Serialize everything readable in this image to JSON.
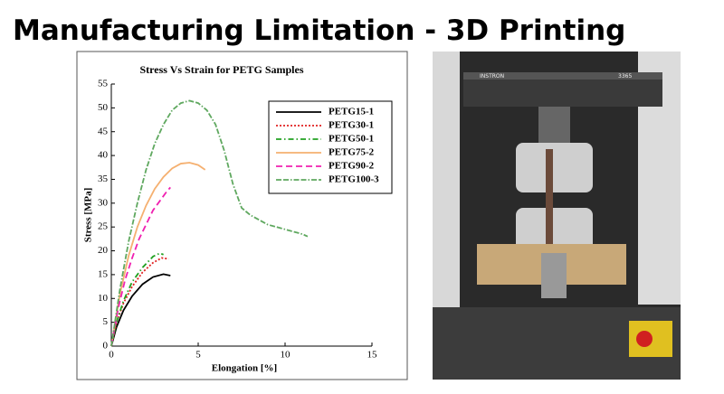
{
  "title": "Manufacturing Limitation - 3D Printing",
  "chart_data": {
    "type": "line",
    "title": "Stress Vs Strain for PETG Samples",
    "x_label": "Elongation [%]",
    "y_label": "Stress [MPa]",
    "xlim": [
      0,
      15
    ],
    "xticks": [
      0,
      5,
      10,
      15
    ],
    "ylim": [
      0,
      55
    ],
    "yticks": [
      0,
      5,
      10,
      15,
      20,
      25,
      30,
      35,
      40,
      45,
      50,
      55
    ],
    "legend": "top-right",
    "series": [
      {
        "name": "PETG15-1",
        "color": "#000000",
        "dash": "solid",
        "x": [
          0,
          0.3,
          0.7,
          1.2,
          1.8,
          2.4,
          3.0,
          3.4
        ],
        "values": [
          0,
          4,
          7.5,
          10.5,
          13,
          14.5,
          15.1,
          14.8
        ]
      },
      {
        "name": "PETG30-1",
        "color": "#e02020",
        "dash": "dotted",
        "x": [
          0,
          0.3,
          0.7,
          1.2,
          1.8,
          2.4,
          2.9,
          3.3
        ],
        "values": [
          0,
          5,
          9,
          12.5,
          15.5,
          17.5,
          18.5,
          18.3
        ]
      },
      {
        "name": "PETG50-1",
        "color": "#20a020",
        "dash": "dashdot",
        "x": [
          0,
          0.3,
          0.7,
          1.2,
          1.8,
          2.4,
          2.8,
          3.0
        ],
        "values": [
          0,
          5,
          9.5,
          13.5,
          16.5,
          18.8,
          19.5,
          19.2
        ]
      },
      {
        "name": "PETG75-2",
        "color": "#f5b070",
        "dash": "solid",
        "x": [
          0,
          0.5,
          1,
          1.5,
          2,
          2.5,
          3,
          3.5,
          4,
          4.5,
          5,
          5.4
        ],
        "values": [
          0,
          11,
          19,
          25,
          29.5,
          33,
          35.5,
          37.3,
          38.3,
          38.5,
          38,
          37
        ]
      },
      {
        "name": "PETG90-2",
        "color": "#f020b0",
        "dash": "dashed",
        "x": [
          0,
          0.4,
          0.8,
          1.2,
          1.6,
          2,
          2.4,
          2.8,
          3.2,
          3.4
        ],
        "values": [
          0,
          8,
          14,
          18.5,
          22.5,
          25.5,
          28.5,
          30.5,
          32.5,
          33.3
        ]
      },
      {
        "name": "PETG100-3",
        "color": "#5fa85f",
        "dash": "dashdashdot",
        "x": [
          0,
          0.5,
          1,
          1.5,
          2,
          2.5,
          3,
          3.5,
          4,
          4.5,
          5,
          5.5,
          6,
          6.5,
          7,
          7.5,
          8,
          9,
          10,
          11,
          11.3
        ],
        "values": [
          0,
          12,
          22,
          30,
          37,
          42.5,
          46.5,
          49.5,
          51,
          51.5,
          51,
          49.5,
          46.5,
          41,
          34,
          29,
          27.5,
          25.5,
          24.5,
          23.5,
          23
        ]
      }
    ]
  },
  "photo": {
    "brand": "INSTRON",
    "model": "3365"
  }
}
